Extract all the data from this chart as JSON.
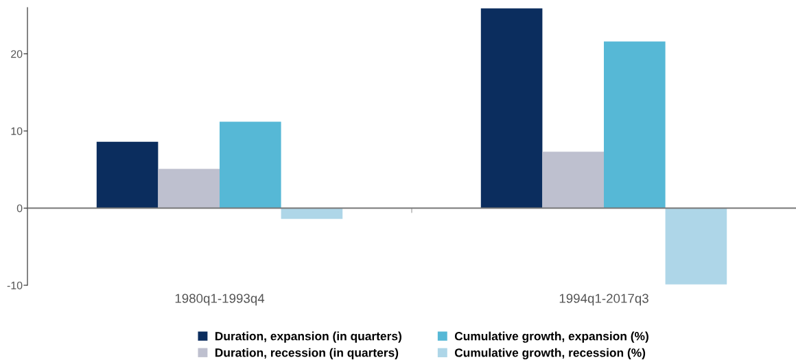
{
  "chart_data": {
    "type": "bar",
    "categories": [
      "1980q1-1993q4",
      "1994q1-2017q3"
    ],
    "series": [
      {
        "name": "Duration, expansion (in quarters)",
        "color": "#0b2d5e",
        "values": [
          8.6,
          25.9
        ]
      },
      {
        "name": "Duration, recession (in quarters)",
        "color": "#bec0cf",
        "values": [
          5.1,
          7.3
        ]
      },
      {
        "name": "Cumulative growth, expansion (%)",
        "color": "#56b8d6",
        "values": [
          11.2,
          21.6
        ]
      },
      {
        "name": "Cumulative growth, recession (%)",
        "color": "#aed6e8",
        "values": [
          -1.4,
          -9.9
        ]
      }
    ],
    "ylim": [
      -10,
      26
    ],
    "yticks": [
      -10,
      0,
      10,
      20
    ],
    "ref_lines": [
      {
        "axis": "y",
        "value": 0,
        "color": "#777777"
      }
    ],
    "grid": false,
    "legend": "bottom"
  }
}
